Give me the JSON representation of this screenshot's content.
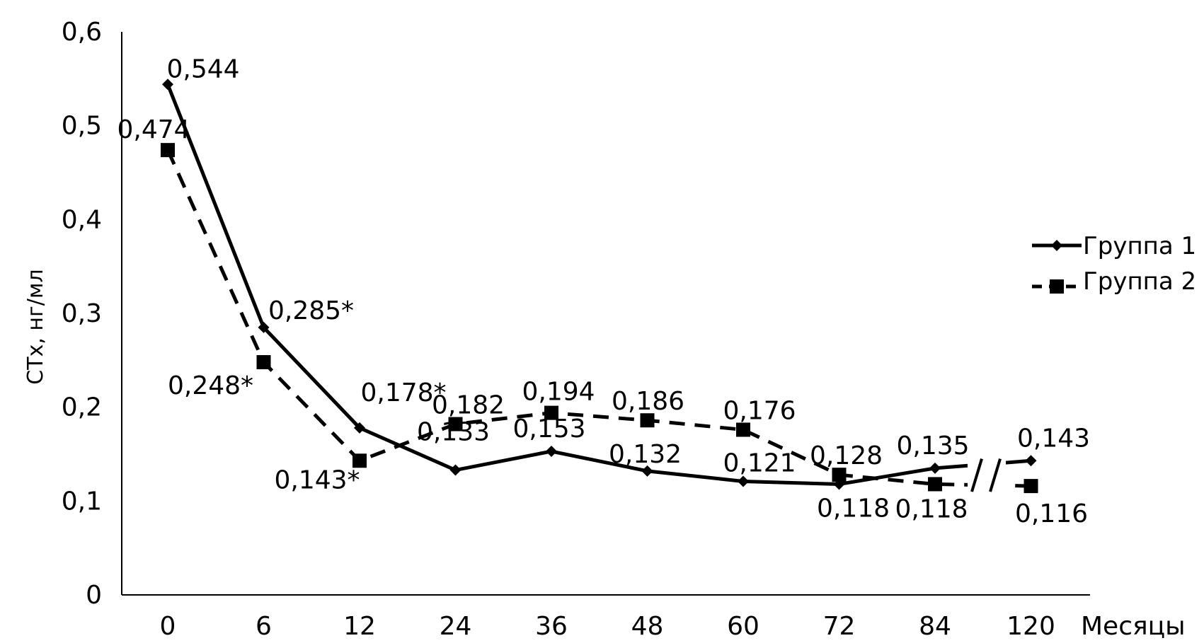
{
  "chart_data": {
    "type": "line",
    "title": "",
    "xlabel": "Месяцы",
    "ylabel": "СТх, нг/мл",
    "categories": [
      "0",
      "6",
      "12",
      "24",
      "36",
      "48",
      "60",
      "72",
      "84",
      "120"
    ],
    "ylim": [
      0,
      0.6
    ],
    "yticks": [
      "0",
      "0,1",
      "0,2",
      "0,3",
      "0,4",
      "0,5",
      "0,6"
    ],
    "axis_break": "between 84 and 120",
    "grid": false,
    "legend_position": "right",
    "series": [
      {
        "name": "Группа 1",
        "values": [
          0.544,
          0.285,
          0.178,
          0.133,
          0.153,
          0.132,
          0.121,
          0.118,
          0.135,
          0.143
        ],
        "labels": [
          "0,544",
          "0,285*",
          "0,178*",
          "0,133",
          "0,153",
          "0,132",
          "0,121",
          "0,118",
          "0,135",
          "0,143"
        ],
        "line_style": "solid",
        "marker": "diamond",
        "color": "#000000"
      },
      {
        "name": "Группа 2",
        "values": [
          0.474,
          0.248,
          0.143,
          0.182,
          0.194,
          0.186,
          0.176,
          0.128,
          0.118,
          0.116
        ],
        "labels": [
          "0,474",
          "0,248*",
          "0,143*",
          "0,182",
          "0,194",
          "0,186",
          "0,176",
          "0,128",
          "0,118",
          "0,116"
        ],
        "line_style": "dashed",
        "marker": "square",
        "color": "#000000"
      }
    ]
  }
}
